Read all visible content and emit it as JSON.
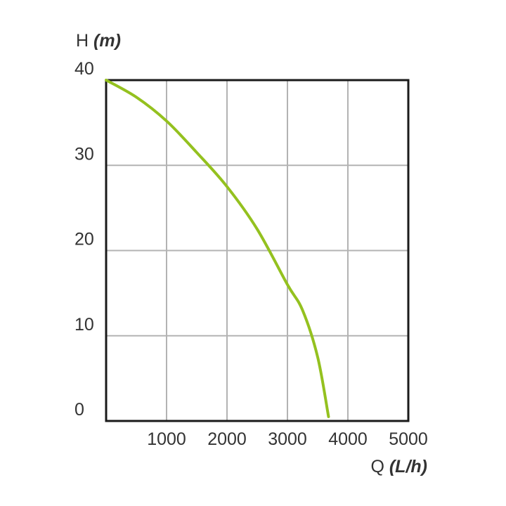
{
  "chart_data": {
    "type": "line",
    "y_label": "H",
    "y_unit": "(m)",
    "x_label": "Q",
    "x_unit": "(L/h)",
    "x": [
      0,
      500,
      1000,
      1500,
      2000,
      2500,
      3000,
      3250,
      3500,
      3680
    ],
    "series": [
      {
        "color": "#94c11f",
        "values": [
          40,
          38,
          35.2,
          31.5,
          27.5,
          22.5,
          16,
          13,
          7.5,
          0.5
        ]
      }
    ],
    "xlim": [
      0,
      5000
    ],
    "xticks": [
      1000,
      2000,
      3000,
      4000,
      5000
    ],
    "ylim": [
      0,
      40
    ],
    "yticks": [
      0,
      10,
      20,
      30,
      40
    ],
    "grid": true
  }
}
